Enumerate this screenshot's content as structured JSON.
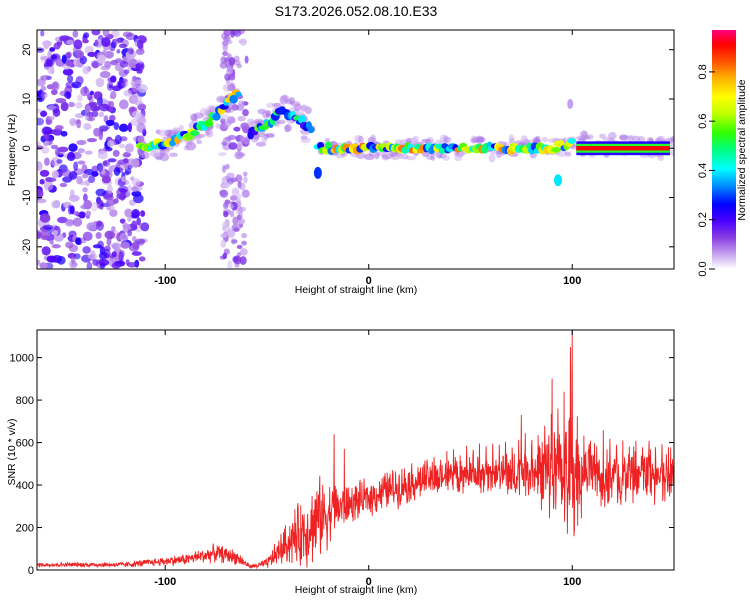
{
  "figure": {
    "title": "S173.2026.052.08.10.E33"
  },
  "chart_data": [
    {
      "type": "heatmap",
      "title": "S173.2026.052.08.10.E33",
      "xlabel": "Height of straight line (km)",
      "ylabel": "Frequency (Hz)",
      "xlim": [
        -163,
        150
      ],
      "ylim": [
        -24.5,
        24
      ],
      "xticks": [
        -100,
        0,
        100
      ],
      "yticks": [
        -20,
        -10,
        0,
        10,
        20
      ],
      "colorbar": {
        "label": "Normalized spectral amplitude",
        "range": [
          0,
          0.97
        ],
        "ticks": [
          0.0,
          0.2,
          0.4,
          0.6,
          0.8
        ],
        "colormap": [
          "#ffffff",
          "#c9a6f0",
          "#8a3fe0",
          "#4b00ff",
          "#0000ff",
          "#0090ff",
          "#00ffff",
          "#00ff80",
          "#30ff00",
          "#c0ff00",
          "#ffff00",
          "#ffb000",
          "#ff5000",
          "#ff0000",
          "#ff0080"
        ]
      },
      "features": [
        {
          "name": "noise-region",
          "x_range": [
            -163,
            -110
          ],
          "y_range": [
            -24,
            24
          ],
          "level": 0.15
        },
        {
          "name": "rising-streak",
          "points": [
            [
              -112,
              0
            ],
            [
              -100,
              1
            ],
            [
              -90,
              2.5
            ],
            [
              -80,
              5
            ],
            [
              -72,
              8
            ],
            [
              -63,
              12
            ]
          ],
          "level": 0.7
        },
        {
          "name": "second-streak",
          "points": [
            [
              -58,
              3
            ],
            [
              -50,
              5
            ],
            [
              -42,
              7.5
            ],
            [
              -35,
              6
            ],
            [
              -28,
              4
            ]
          ],
          "level": 0.55
        },
        {
          "name": "noise-column",
          "x_range": [
            -72,
            -60
          ],
          "y_range": [
            -24,
            24
          ],
          "level": 0.12
        },
        {
          "name": "main-band",
          "points": [
            [
              -25,
              0
            ],
            [
              0,
              0
            ],
            [
              50,
              0
            ],
            [
              90,
              0
            ],
            [
              100,
              1
            ],
            [
              150,
              0
            ]
          ],
          "level": 0.75
        },
        {
          "name": "red-line",
          "points": [
            [
              102,
              0
            ],
            [
              148,
              0
            ]
          ],
          "level": 0.97
        }
      ]
    },
    {
      "type": "line",
      "xlabel": "Height of straight line (km)",
      "ylabel": "SNR (10 * v/v)",
      "xlim": [
        -163,
        150
      ],
      "ylim": [
        0,
        1130
      ],
      "xticks": [
        -100,
        0,
        100
      ],
      "yticks": [
        0,
        200,
        400,
        600,
        800,
        1000
      ],
      "series": [
        {
          "name": "SNR",
          "color": "#ee2222",
          "envelope": {
            "x": [
              -163,
              -120,
              -90,
              -75,
              -65,
              -58,
              -50,
              -40,
              -32,
              -25,
              -18,
              -10,
              0,
              10,
              20,
              30,
              40,
              60,
              80,
              90,
              95,
              100,
              105,
              120,
              140,
              150
            ],
            "base": [
              25,
              25,
              50,
              80,
              60,
              15,
              30,
              130,
              180,
              240,
              280,
              310,
              340,
              380,
              410,
              430,
              440,
              450,
              460,
              450,
              430,
              420,
              440,
              440,
              445,
              445
            ],
            "noise": [
              12,
              15,
              30,
              50,
              40,
              10,
              30,
              120,
              200,
              230,
              160,
              110,
              100,
              110,
              110,
              110,
              100,
              110,
              140,
              250,
              300,
              380,
              180,
              160,
              150,
              150
            ]
          },
          "peaks": [
            {
              "x": 100,
              "y": 1130
            },
            {
              "x": 99,
              "y": 1050
            },
            {
              "x": 90,
              "y": 900
            },
            {
              "x": -17,
              "y": 640
            },
            {
              "x": -12,
              "y": 570
            },
            {
              "x": 75,
              "y": 730
            }
          ]
        }
      ]
    }
  ]
}
